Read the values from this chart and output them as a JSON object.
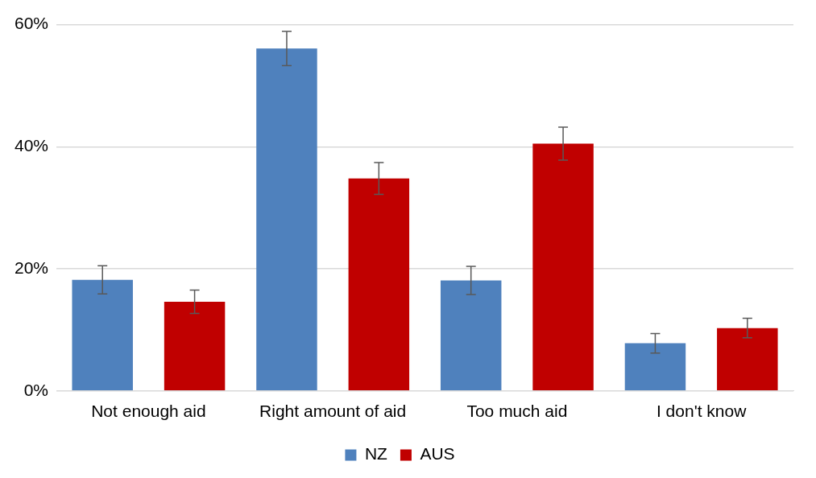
{
  "chart_data": {
    "type": "bar",
    "categories": [
      "Not enough aid",
      "Right amount of aid",
      "Too much aid",
      "I don't know"
    ],
    "series": [
      {
        "name": "NZ",
        "color": "#4f81bd",
        "values": [
          18.2,
          56.1,
          18.1,
          7.8
        ],
        "errors": [
          2.3,
          2.8,
          2.3,
          1.6
        ]
      },
      {
        "name": "AUS",
        "color": "#c00000",
        "values": [
          14.6,
          34.8,
          40.5,
          10.3
        ],
        "errors": [
          1.9,
          2.6,
          2.7,
          1.6
        ]
      }
    ],
    "ylim": [
      0,
      60
    ],
    "yticks": [
      {
        "value": 0,
        "label": "0%"
      },
      {
        "value": 20,
        "label": "20%"
      },
      {
        "value": 40,
        "label": "40%"
      },
      {
        "value": 60,
        "label": "60%"
      }
    ],
    "grid": "y",
    "legend": "bottom"
  }
}
